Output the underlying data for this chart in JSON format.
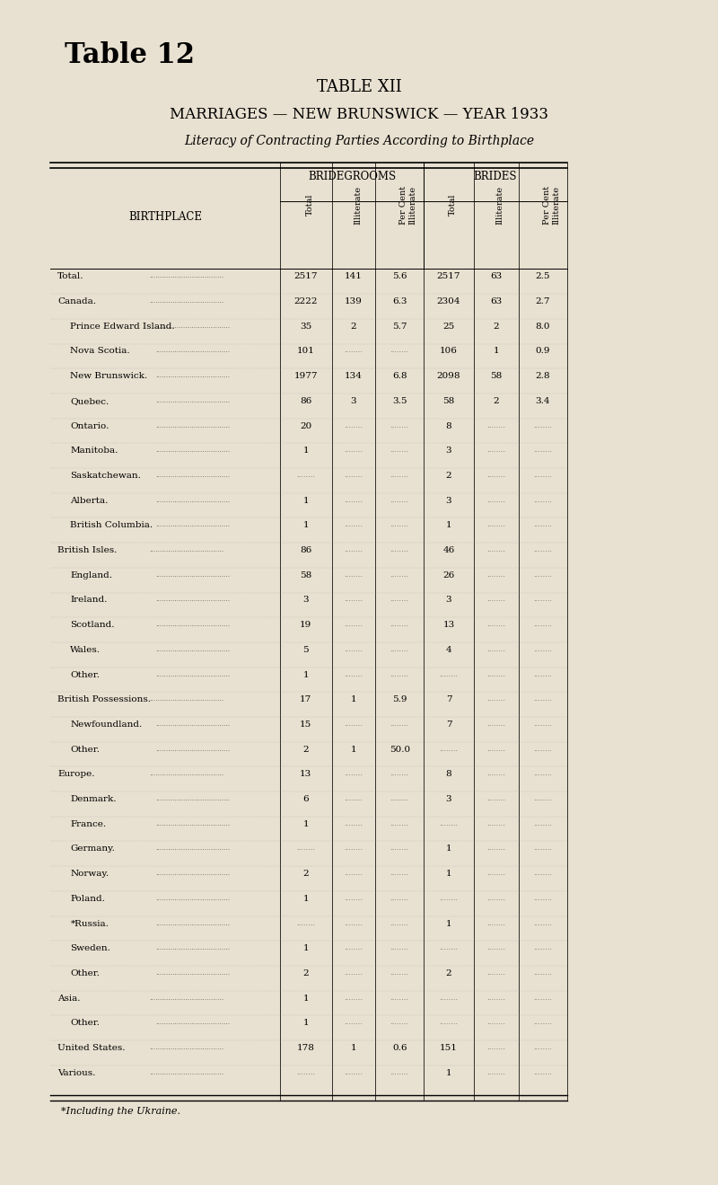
{
  "bg_color": "#e8e0d0",
  "title_table": "Table 12",
  "title1": "TABLE XII",
  "title2": "MARRIAGES — NEW BRUNSWICK — YEAR 1933",
  "title3": "Literacy of Contracting Parties According to Birthplace",
  "col_header1": "BRIDEGROOMS",
  "col_header2": "BRIDES",
  "birthplace_label": "BIRTHPLACE",
  "footnote": "*Including the Ukraine.",
  "rows": [
    {
      "name": "Total.",
      "indent": 0,
      "bg_t": "2517",
      "bg_il": "141",
      "bg_pc": "5.6",
      "br_t": "2517",
      "br_il": "63",
      "br_pc": "2.5"
    },
    {
      "name": "Canada.",
      "indent": 0,
      "bg_t": "2222",
      "bg_il": "139",
      "bg_pc": "6.3",
      "br_t": "2304",
      "br_il": "63",
      "br_pc": "2.7"
    },
    {
      "name": "Prince Edward Island.",
      "indent": 1,
      "bg_t": "35",
      "bg_il": "2",
      "bg_pc": "5.7",
      "br_t": "25",
      "br_il": "2",
      "br_pc": "8.0"
    },
    {
      "name": "Nova Scotia.",
      "indent": 1,
      "bg_t": "101",
      "bg_il": "",
      "bg_pc": "",
      "br_t": "106",
      "br_il": "1",
      "br_pc": "0.9"
    },
    {
      "name": "New Brunswick.",
      "indent": 1,
      "bg_t": "1977",
      "bg_il": "134",
      "bg_pc": "6.8",
      "br_t": "2098",
      "br_il": "58",
      "br_pc": "2.8"
    },
    {
      "name": "Quebec.",
      "indent": 1,
      "bg_t": "86",
      "bg_il": "3",
      "bg_pc": "3.5",
      "br_t": "58",
      "br_il": "2",
      "br_pc": "3.4"
    },
    {
      "name": "Ontario.",
      "indent": 1,
      "bg_t": "20",
      "bg_il": "",
      "bg_pc": "",
      "br_t": "8",
      "br_il": "",
      "br_pc": ""
    },
    {
      "name": "Manitoba.",
      "indent": 1,
      "bg_t": "1",
      "bg_il": "",
      "bg_pc": "",
      "br_t": "3",
      "br_il": "",
      "br_pc": ""
    },
    {
      "name": "Saskatchewan.",
      "indent": 1,
      "bg_t": "",
      "bg_il": "",
      "bg_pc": "",
      "br_t": "2",
      "br_il": "",
      "br_pc": ""
    },
    {
      "name": "Alberta.",
      "indent": 1,
      "bg_t": "1",
      "bg_il": "",
      "bg_pc": "",
      "br_t": "3",
      "br_il": "",
      "br_pc": ""
    },
    {
      "name": "British Columbia.",
      "indent": 1,
      "bg_t": "1",
      "bg_il": "",
      "bg_pc": "",
      "br_t": "1",
      "br_il": "",
      "br_pc": ""
    },
    {
      "name": "British Isles.",
      "indent": 0,
      "bg_t": "86",
      "bg_il": "",
      "bg_pc": "",
      "br_t": "46",
      "br_il": "",
      "br_pc": ""
    },
    {
      "name": "England.",
      "indent": 1,
      "bg_t": "58",
      "bg_il": "",
      "bg_pc": "",
      "br_t": "26",
      "br_il": "",
      "br_pc": ""
    },
    {
      "name": "Ireland.",
      "indent": 1,
      "bg_t": "3",
      "bg_il": "",
      "bg_pc": "",
      "br_t": "3",
      "br_il": "",
      "br_pc": ""
    },
    {
      "name": "Scotland.",
      "indent": 1,
      "bg_t": "19",
      "bg_il": "",
      "bg_pc": "",
      "br_t": "13",
      "br_il": "",
      "br_pc": ""
    },
    {
      "name": "Wales.",
      "indent": 1,
      "bg_t": "5",
      "bg_il": "",
      "bg_pc": "",
      "br_t": "4",
      "br_il": "",
      "br_pc": ""
    },
    {
      "name": "Other.",
      "indent": 1,
      "bg_t": "1",
      "bg_il": "",
      "bg_pc": "",
      "br_t": "",
      "br_il": "",
      "br_pc": ""
    },
    {
      "name": "British Possessions.",
      "indent": 0,
      "bg_t": "17",
      "bg_il": "1",
      "bg_pc": "5.9",
      "br_t": "7",
      "br_il": "",
      "br_pc": ""
    },
    {
      "name": "Newfoundland.",
      "indent": 1,
      "bg_t": "15",
      "bg_il": "",
      "bg_pc": "",
      "br_t": "7",
      "br_il": "",
      "br_pc": ""
    },
    {
      "name": "Other.",
      "indent": 1,
      "bg_t": "2",
      "bg_il": "1",
      "bg_pc": "50.0",
      "br_t": "",
      "br_il": "",
      "br_pc": ""
    },
    {
      "name": "Europe.",
      "indent": 0,
      "bg_t": "13",
      "bg_il": "",
      "bg_pc": "",
      "br_t": "8",
      "br_il": "",
      "br_pc": ""
    },
    {
      "name": "Denmark.",
      "indent": 1,
      "bg_t": "6",
      "bg_il": "",
      "bg_pc": "",
      "br_t": "3",
      "br_il": "",
      "br_pc": ""
    },
    {
      "name": "France.",
      "indent": 1,
      "bg_t": "1",
      "bg_il": "",
      "bg_pc": "",
      "br_t": "",
      "br_il": "",
      "br_pc": ""
    },
    {
      "name": "Germany.",
      "indent": 1,
      "bg_t": "",
      "bg_il": "",
      "bg_pc": "",
      "br_t": "1",
      "br_il": "",
      "br_pc": ""
    },
    {
      "name": "Norway.",
      "indent": 1,
      "bg_t": "2",
      "bg_il": "",
      "bg_pc": "",
      "br_t": "1",
      "br_il": "",
      "br_pc": ""
    },
    {
      "name": "Poland.",
      "indent": 1,
      "bg_t": "1",
      "bg_il": "",
      "bg_pc": "",
      "br_t": "",
      "br_il": "",
      "br_pc": ""
    },
    {
      "name": "*Russia.",
      "indent": 1,
      "bg_t": "",
      "bg_il": "",
      "bg_pc": "",
      "br_t": "1",
      "br_il": "",
      "br_pc": ""
    },
    {
      "name": "Sweden.",
      "indent": 1,
      "bg_t": "1",
      "bg_il": "",
      "bg_pc": "",
      "br_t": "",
      "br_il": "",
      "br_pc": ""
    },
    {
      "name": "Other.",
      "indent": 1,
      "bg_t": "2",
      "bg_il": "",
      "bg_pc": "",
      "br_t": "2",
      "br_il": "",
      "br_pc": ""
    },
    {
      "name": "Asia.",
      "indent": 0,
      "bg_t": "1",
      "bg_il": "",
      "bg_pc": "",
      "br_t": "",
      "br_il": "",
      "br_pc": ""
    },
    {
      "name": "Other.",
      "indent": 1,
      "bg_t": "1",
      "bg_il": "",
      "bg_pc": "",
      "br_t": "",
      "br_il": "",
      "br_pc": ""
    },
    {
      "name": "United States.",
      "indent": 0,
      "bg_t": "178",
      "bg_il": "1",
      "bg_pc": "0.6",
      "br_t": "151",
      "br_il": "",
      "br_pc": ""
    },
    {
      "name": "Various.",
      "indent": 0,
      "bg_t": "",
      "bg_il": "",
      "bg_pc": "",
      "br_t": "1",
      "br_il": "",
      "br_pc": ""
    }
  ]
}
